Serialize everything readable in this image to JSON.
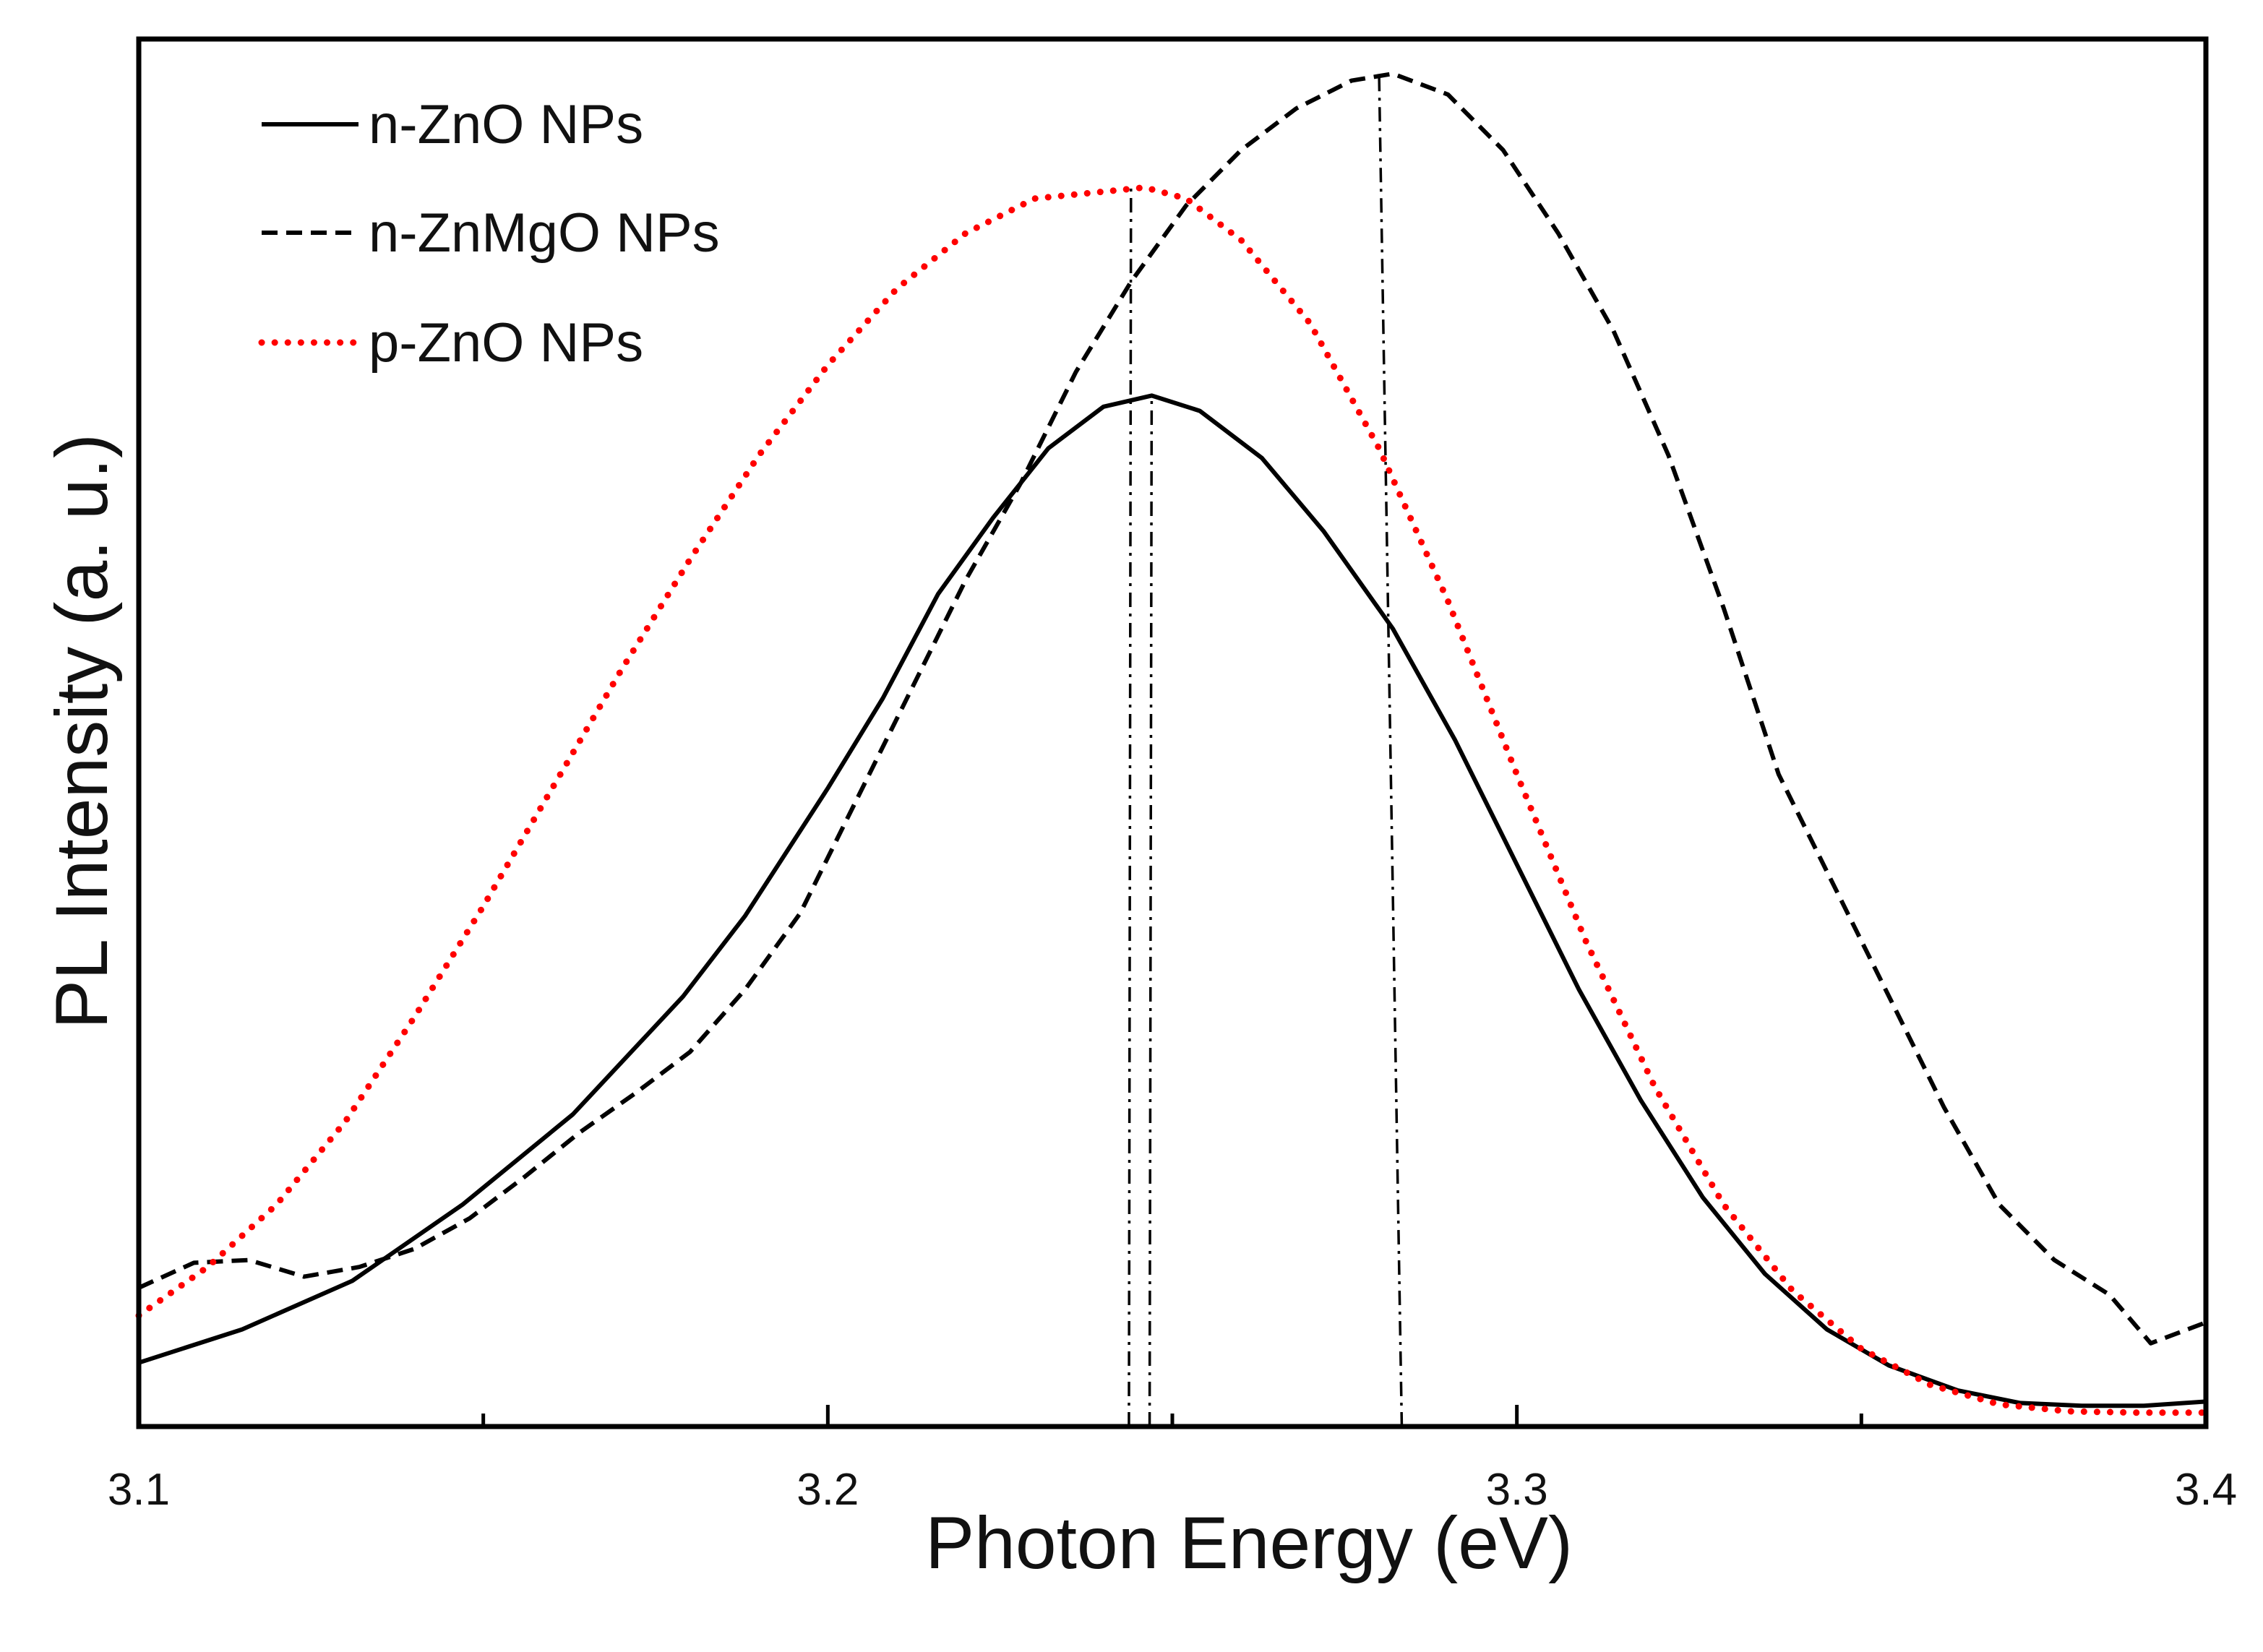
{
  "chart_data": {
    "type": "line",
    "title": "",
    "xlabel": "Photon Energy (eV)",
    "ylabel": "PL Intensity (a. u.)",
    "xlim": [
      3.1,
      3.4
    ],
    "ylim": [
      0,
      100
    ],
    "x_ticks": [
      3.1,
      3.2,
      3.3,
      3.4
    ],
    "x_tick_labels": [
      "3.1",
      "3.2",
      "3.3",
      "3.4"
    ],
    "minor_tick_step": 0.05,
    "y_ticks_visible": false,
    "grid": false,
    "legend_position": "top-left",
    "series": [
      {
        "name": "n-ZnO NPs",
        "style": "solid",
        "color": "#000000",
        "x": [
          3.1,
          3.115,
          3.131,
          3.147,
          3.163,
          3.179,
          3.188,
          3.2,
          3.208,
          3.216,
          3.224,
          3.232,
          3.24,
          3.247,
          3.254,
          3.263,
          3.272,
          3.282,
          3.291,
          3.3,
          3.309,
          3.318,
          3.327,
          3.336,
          3.345,
          3.354,
          3.364,
          3.373,
          3.382,
          3.391,
          3.4
        ],
        "y": [
          4.6,
          7.0,
          10.5,
          16.0,
          22.5,
          31.0,
          36.8,
          46.0,
          52.5,
          60.0,
          65.5,
          70.5,
          73.5,
          74.3,
          73.2,
          69.8,
          64.5,
          57.5,
          49.5,
          40.5,
          31.5,
          23.5,
          16.5,
          11.0,
          7.0,
          4.4,
          2.6,
          1.7,
          1.5,
          1.5,
          1.8
        ]
      },
      {
        "name": "n-ZnMgO NPs",
        "style": "dashed",
        "color": "#000000",
        "x": [
          3.1,
          3.108,
          3.116,
          3.124,
          3.132,
          3.14,
          3.148,
          3.156,
          3.164,
          3.172,
          3.18,
          3.188,
          3.196,
          3.204,
          3.212,
          3.22,
          3.228,
          3.236,
          3.244,
          3.252,
          3.26,
          3.268,
          3.276,
          3.282,
          3.29,
          3.298,
          3.306,
          3.314,
          3.322,
          3.33,
          3.338,
          3.346,
          3.354,
          3.362,
          3.37,
          3.378,
          3.386,
          3.392,
          3.4
        ],
        "y": [
          10.0,
          11.8,
          12.0,
          10.8,
          11.5,
          12.8,
          15.0,
          18.0,
          21.2,
          24.0,
          27.0,
          31.5,
          37.0,
          45.0,
          53.0,
          61.0,
          68.0,
          76.0,
          82.5,
          88.0,
          92.0,
          95.0,
          97.0,
          97.5,
          96.0,
          92.0,
          86.0,
          79.0,
          70.0,
          59.0,
          47.0,
          39.0,
          31.0,
          23.0,
          16.0,
          12.0,
          9.5,
          6.0,
          7.5
        ]
      },
      {
        "name": "p-ZnO NPs",
        "style": "dotted",
        "color": "#ff0000",
        "x": [
          3.1,
          3.11,
          3.12,
          3.13,
          3.14,
          3.15,
          3.16,
          3.17,
          3.18,
          3.19,
          3.2,
          3.21,
          3.22,
          3.23,
          3.24,
          3.246,
          3.252,
          3.26,
          3.27,
          3.28,
          3.29,
          3.3,
          3.31,
          3.32,
          3.33,
          3.34,
          3.35,
          3.36,
          3.37,
          3.38,
          3.39,
          3.4
        ],
        "y": [
          8.0,
          11.5,
          16.0,
          22.0,
          29.5,
          37.5,
          46.0,
          54.5,
          62.5,
          70.0,
          76.5,
          82.0,
          86.0,
          88.5,
          89.0,
          89.3,
          88.5,
          85.5,
          79.5,
          70.5,
          59.5,
          47.0,
          35.0,
          24.5,
          16.0,
          9.8,
          5.6,
          3.0,
          1.6,
          1.1,
          1.0,
          1.0
        ]
      }
    ],
    "reference_lines": [
      {
        "label": "",
        "style": "dash-dot",
        "x_bottom": 3.2437,
        "x_top": 3.244,
        "y_top": 89.4
      },
      {
        "label": "",
        "style": "dash-dot",
        "x_bottom": 3.2467,
        "x_top": 3.247,
        "y_top": 74.4
      },
      {
        "label": "",
        "style": "dash-dot",
        "x_bottom": 3.2833,
        "x_top": 3.28,
        "y_top": 97.6
      }
    ]
  }
}
